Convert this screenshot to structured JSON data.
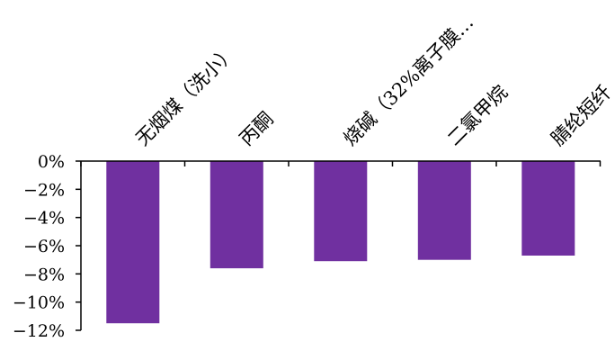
{
  "chart_data": {
    "type": "bar",
    "title": "",
    "xlabel": "",
    "ylabel": "",
    "categories": [
      "无烟煤（洗小）",
      "丙酮",
      "烧碱（32%离子膜…",
      "二氯甲烷",
      "腈纶短纤"
    ],
    "series": [
      {
        "values": [
          -11.5,
          -7.6,
          -7.1,
          -7.0,
          -6.7
        ]
      }
    ],
    "ylim": [
      -12,
      0
    ],
    "y_ticks": [
      "0%",
      "−2%",
      "−4%",
      "−6%",
      "−8%",
      "−10%",
      "−12%"
    ],
    "y_tick_values": [
      0,
      -2,
      -4,
      -6,
      -8,
      -10,
      -12
    ],
    "bar_color": "#7030A0",
    "grid": false,
    "legend": "none"
  }
}
